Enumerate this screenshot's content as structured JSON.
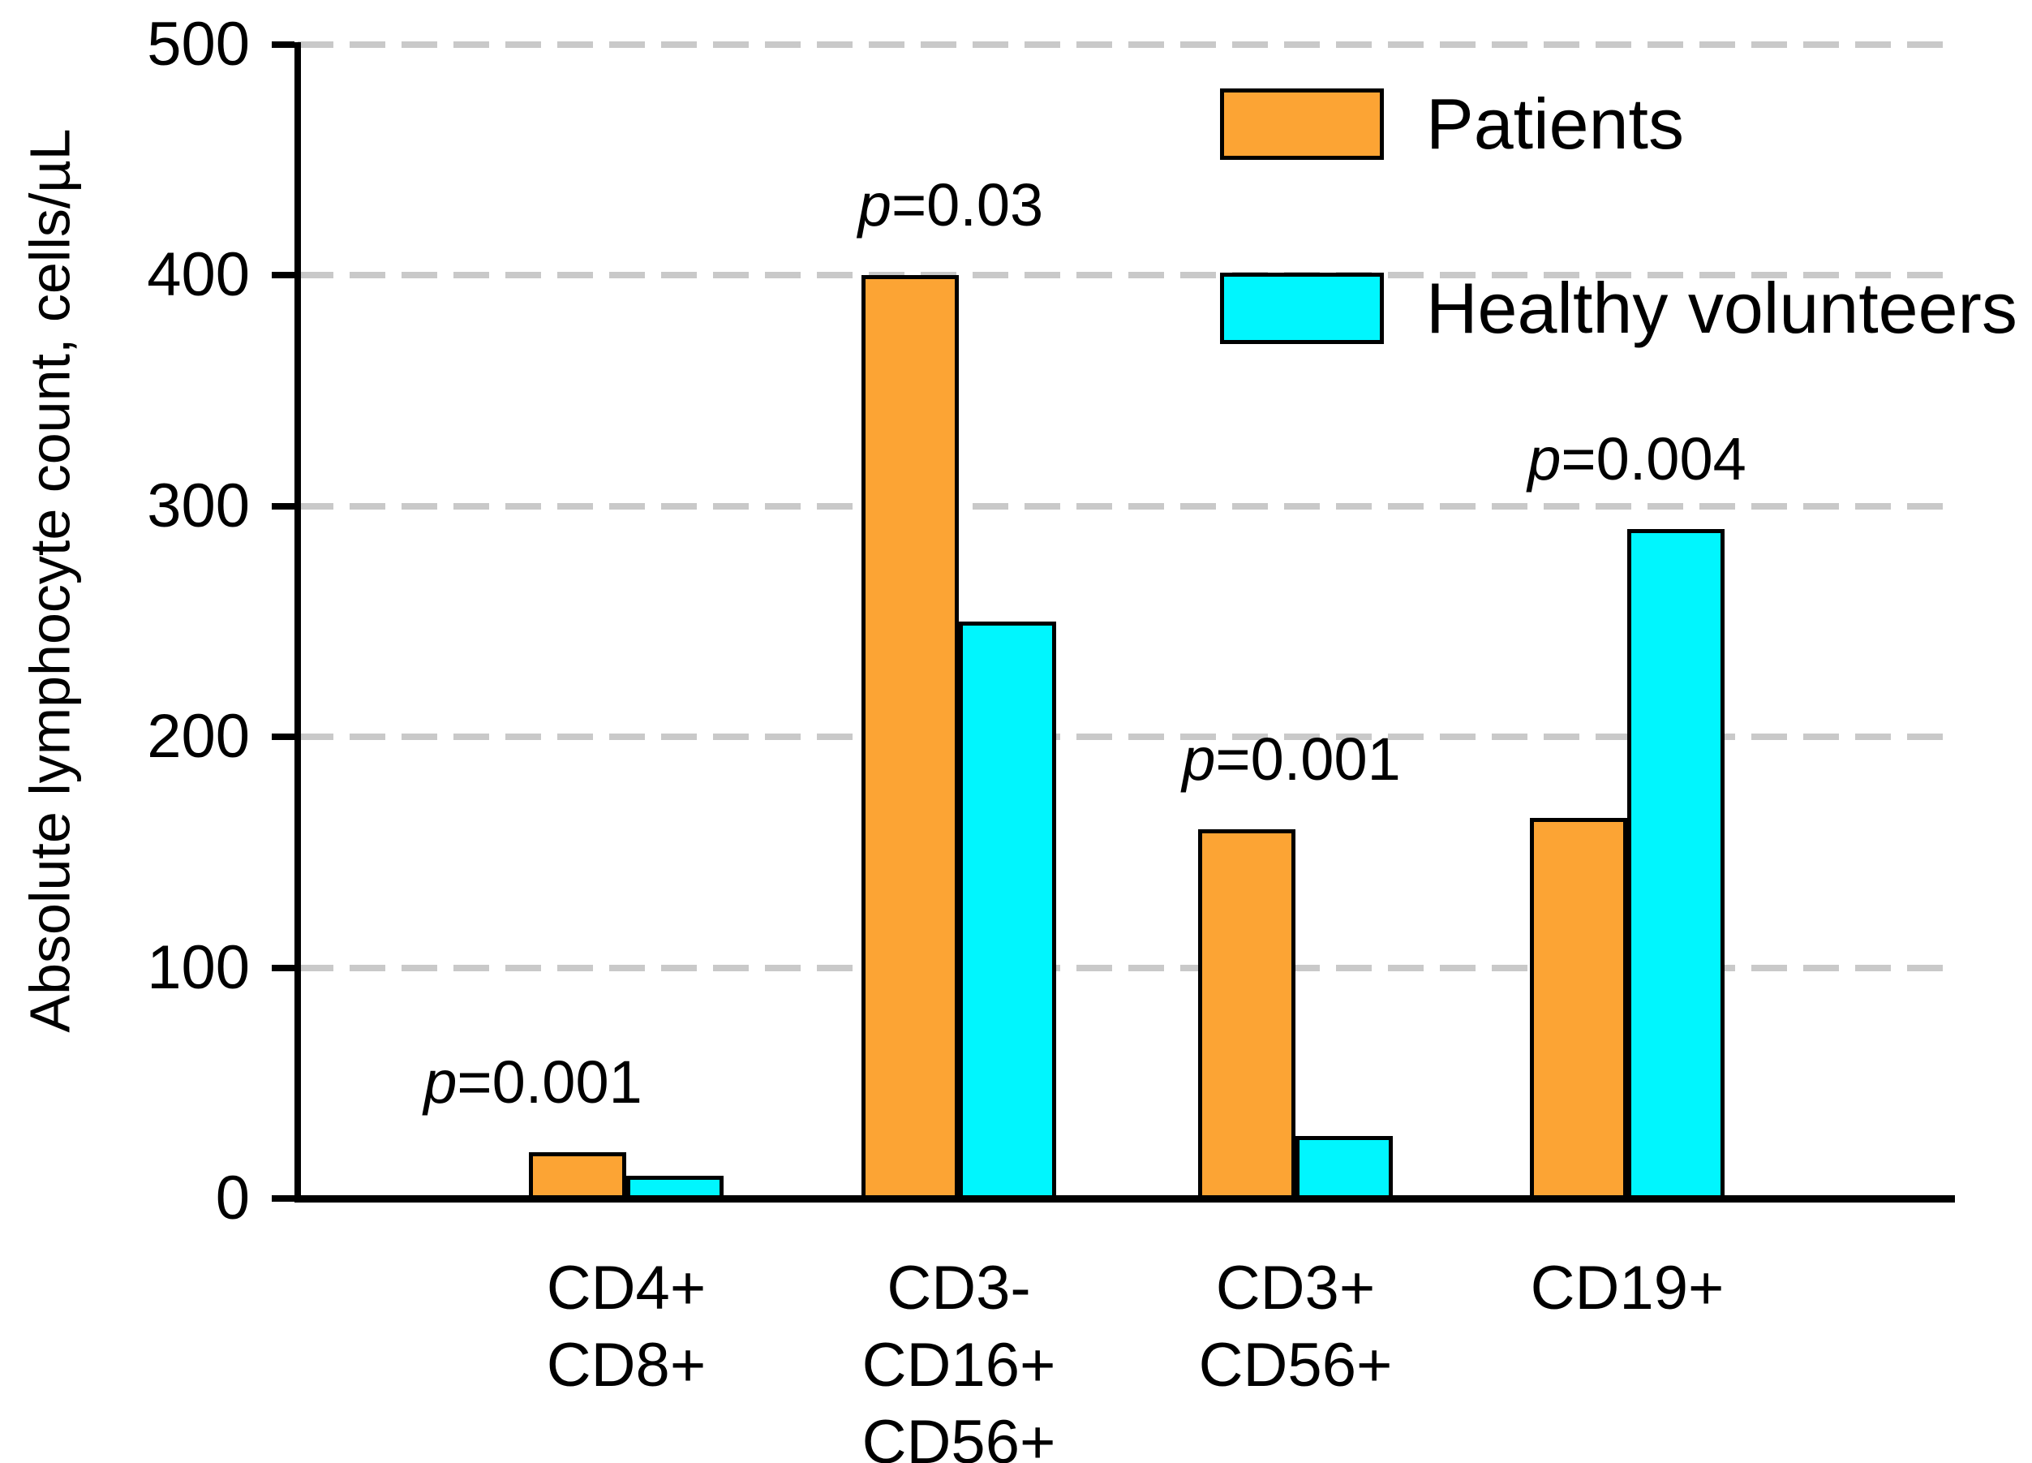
{
  "chart_data": {
    "type": "bar",
    "title": "",
    "ylabel": "Absolute lymphocyte count, cells/µL",
    "xlabel": "",
    "ylim": [
      0,
      500
    ],
    "yticks": [
      0,
      100,
      200,
      300,
      400,
      500
    ],
    "grid": "horizontal dashed gray lines at 100-500",
    "legend_position": "top-right",
    "categories": [
      {
        "label_lines": [
          "CD4+",
          "CD8+"
        ],
        "p_label": "p=0.001"
      },
      {
        "label_lines": [
          "CD3-",
          "CD16+",
          "CD56+"
        ],
        "p_label": "p=0.03"
      },
      {
        "label_lines": [
          "CD3+",
          "CD56+"
        ],
        "p_label": "p=0.001"
      },
      {
        "label_lines": [
          "CD19+"
        ],
        "p_label": "p=0.004"
      }
    ],
    "series": [
      {
        "name": "Patients",
        "color": "#FCA434",
        "values": [
          20,
          400,
          160,
          165
        ]
      },
      {
        "name": "Healthy volunteers",
        "color": "#00F6FE",
        "values": [
          10,
          250,
          27,
          290
        ]
      }
    ]
  },
  "colors": {
    "background": "#FFFFFF",
    "gridline": "#C9C9C9",
    "axis": "#000000",
    "bar_border": "#000000",
    "text": "#000000"
  }
}
